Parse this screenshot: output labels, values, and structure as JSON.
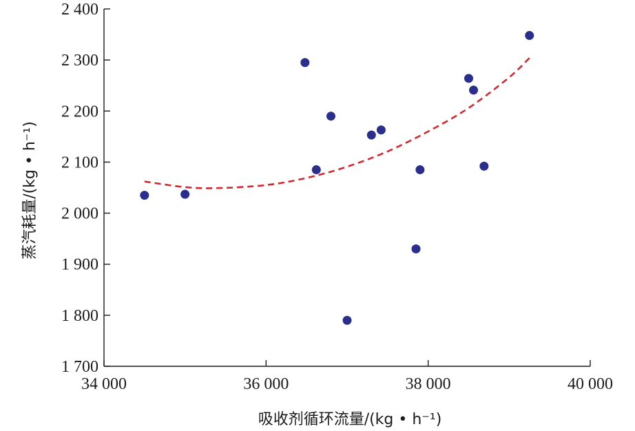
{
  "chart_data": {
    "type": "scatter",
    "xlabel": "吸收剂循环流量/(kg • h⁻¹)",
    "ylabel": "蒸汽耗量/(kg • h⁻¹)",
    "xlim": [
      34000,
      40000
    ],
    "ylim": [
      1700,
      2400
    ],
    "x_ticks": [
      34000,
      36000,
      38000,
      40000
    ],
    "x_tick_labels": [
      "34 000",
      "36 000",
      "38 000",
      "40 000"
    ],
    "y_ticks": [
      1700,
      1800,
      1900,
      2000,
      2100,
      2200,
      2300,
      2400
    ],
    "y_tick_labels": [
      "1 700",
      "1 800",
      "1 900",
      "2 000",
      "2 100",
      "2 200",
      "2 300",
      "2 400"
    ],
    "grid": false,
    "points": [
      {
        "x": 34500,
        "y": 2035
      },
      {
        "x": 35000,
        "y": 2037
      },
      {
        "x": 36480,
        "y": 2295
      },
      {
        "x": 36620,
        "y": 2085
      },
      {
        "x": 36800,
        "y": 2190
      },
      {
        "x": 37000,
        "y": 1790
      },
      {
        "x": 37300,
        "y": 2153
      },
      {
        "x": 37420,
        "y": 2163
      },
      {
        "x": 37850,
        "y": 1930
      },
      {
        "x": 37900,
        "y": 2085
      },
      {
        "x": 38500,
        "y": 2264
      },
      {
        "x": 38560,
        "y": 2241
      },
      {
        "x": 38690,
        "y": 2092
      },
      {
        "x": 39250,
        "y": 2348
      }
    ],
    "trend": {
      "style": "dashed",
      "points": [
        {
          "x": 34500,
          "y": 2062
        },
        {
          "x": 35000,
          "y": 2051
        },
        {
          "x": 35400,
          "y": 2049
        },
        {
          "x": 36000,
          "y": 2055
        },
        {
          "x": 36500,
          "y": 2069
        },
        {
          "x": 37000,
          "y": 2091
        },
        {
          "x": 37500,
          "y": 2121
        },
        {
          "x": 38000,
          "y": 2160
        },
        {
          "x": 38500,
          "y": 2206
        },
        {
          "x": 39000,
          "y": 2266
        },
        {
          "x": 39250,
          "y": 2304
        }
      ]
    },
    "colors": {
      "points": "#2a2e8c",
      "trend": "#d6262e",
      "axis": "#1a1a1a"
    }
  }
}
